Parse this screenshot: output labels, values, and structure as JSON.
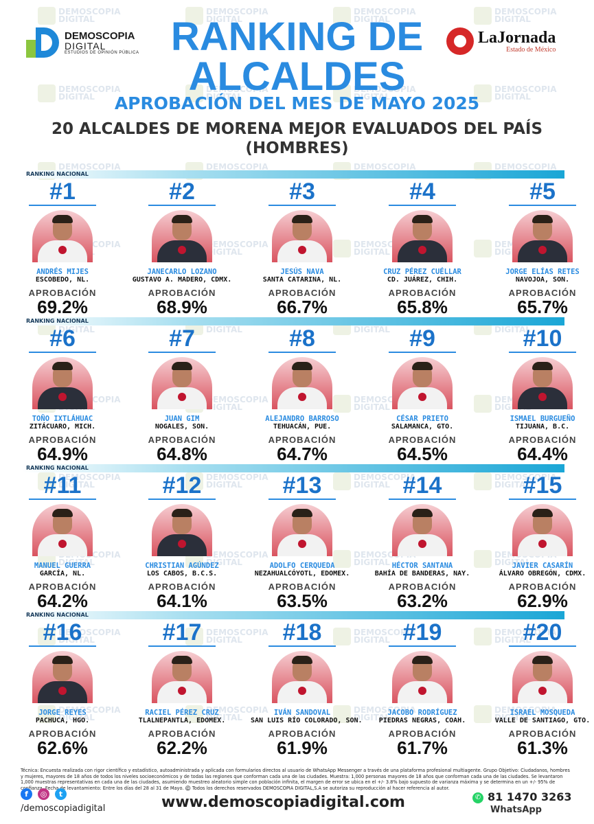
{
  "brand_left": {
    "line1": "DEMOSCOPIA",
    "line2": "DIGITAL",
    "line3": "ESTUDIOS DE OPINIÓN PÚBLICA"
  },
  "brand_right": {
    "name": "LaJornada",
    "sub": "Estado de México"
  },
  "title_line1": "RANKING DE",
  "title_line2": "ALCALDES",
  "subtitle": "APROBACIÓN DEL MES DE MAYO 2025",
  "heading_line1": "20 ALCALDES DE MORENA MEJOR EVALUADOS DEL PAÍS",
  "heading_line2": "(HOMBRES)",
  "band_label": "RANKING NACIONAL",
  "approval_label": "APROBACIÓN",
  "watermark": {
    "line1": "DEMOSCOPIA",
    "line2": "DIGITAL"
  },
  "mayors": [
    {
      "rank": "#1",
      "name": "ANDRÉS MIJES",
      "place": "ESCOBEDO, NL.",
      "approval": "69.2%"
    },
    {
      "rank": "#2",
      "name": "JANECARLO LOZANO",
      "place": "GUSTAVO A. MADERO, CDMX.",
      "approval": "68.9%"
    },
    {
      "rank": "#3",
      "name": "JESÚS NAVA",
      "place": "SANTA CATARINA, NL.",
      "approval": "66.7%"
    },
    {
      "rank": "#4",
      "name": "CRUZ PÉREZ CUÉLLAR",
      "place": "CD. JUÁREZ, CHIH.",
      "approval": "65.8%"
    },
    {
      "rank": "#5",
      "name": "JORGE ELÍAS RETES",
      "place": "NAVOJOA, SON.",
      "approval": "65.7%"
    },
    {
      "rank": "#6",
      "name": "TOÑO IXTLÁHUAC",
      "place": "ZITÁCUARO, MICH.",
      "approval": "64.9%"
    },
    {
      "rank": "#7",
      "name": "JUAN GIM",
      "place": "NOGALES, SON.",
      "approval": "64.8%"
    },
    {
      "rank": "#8",
      "name": "ALEJANDRO BARROSO",
      "place": "TEHUACÁN, PUE.",
      "approval": "64.7%"
    },
    {
      "rank": "#9",
      "name": "CÉSAR PRIETO",
      "place": "SALAMANCA, GTO.",
      "approval": "64.5%"
    },
    {
      "rank": "#10",
      "name": "ISMAEL BURGUEÑO",
      "place": "TIJUANA, B.C.",
      "approval": "64.4%"
    },
    {
      "rank": "#11",
      "name": "MANUEL GUERRA",
      "place": "GARCÍA, NL.",
      "approval": "64.2%"
    },
    {
      "rank": "#12",
      "name": "CHRISTIAN AGÚNDEZ",
      "place": "LOS CABOS, B.C.S.",
      "approval": "64.1%"
    },
    {
      "rank": "#13",
      "name": "ADOLFO CERQUEDA",
      "place": "NEZAHUALCÓYOTL, EDOMEX.",
      "approval": "63.5%"
    },
    {
      "rank": "#14",
      "name": "HÉCTOR SANTANA",
      "place": "BAHÍA DE BANDERAS, NAY.",
      "approval": "63.2%"
    },
    {
      "rank": "#15",
      "name": "JAVIER CASARÍN",
      "place": "ÁLVARO OBREGÓN, CDMX.",
      "approval": "62.9%"
    },
    {
      "rank": "#16",
      "name": "JORGE REYES",
      "place": "PACHUCA, HGO.",
      "approval": "62.6%"
    },
    {
      "rank": "#17",
      "name": "RACIEL PÉREZ CRUZ",
      "place": "TLALNEPANTLA, EDOMEX.",
      "approval": "62.2%"
    },
    {
      "rank": "#18",
      "name": "IVÁN SANDOVAL",
      "place": "SAN LUIS RÍO COLORADO, SON.",
      "approval": "61.9%"
    },
    {
      "rank": "#19",
      "name": "JACOBO RODRÍGUEZ",
      "place": "PIEDRAS NEGRAS, COAH.",
      "approval": "61.7%"
    },
    {
      "rank": "#20",
      "name": "ISRAEL MOSQUEDA",
      "place": "VALLE DE SANTIAGO, GTO.",
      "approval": "61.3%"
    }
  ],
  "footer_text": "Técnica: Encuesta realizada con rigor científico y estadístico, autoadministrada y aplicada con formularios directos al usuario de WhatsApp Messenger a través de una plataforma profesional multiagente. Grupo Objetivo: Ciudadanos, hombres y mujeres, mayores de 18 años de todos los niveles socioeconómicos y de todas las regiones que conforman cada una de las ciudades. Muestra: 1,000 personas mayores de 18 años que conforman cada una de las ciudades. Se levantaron 1,000 muestras representativas en cada una de las ciudades, asumiendo muestreo aleatorio simple con población infinita, el margen de error se ubica en el +/- 3.8% bajo supuesto de varianza máxima y se determina en un +/- 95% de confianza. Fecha de levantamiento: Entre los días del 28 al 31 de Mayo. ©️ Todos los derechos reservados DEMOSCOPIA DIGITAL,S.A se autoriza su reproducción al hacer referencia al autor.",
  "social_handle": "/demoscopiadigital",
  "website": "www.demoscopiadigital.com",
  "phone": "81 1470 3263",
  "whatsapp_label": "WhatsApp",
  "colors": {
    "accent": "#2a8be0",
    "band": "#1aa6d6",
    "arch": "#d9535f",
    "badge": "#c0152f",
    "facebook": "#1877f2",
    "instagram": "#c13584",
    "twitter": "#1da1f2",
    "whatsapp": "#25d366"
  }
}
